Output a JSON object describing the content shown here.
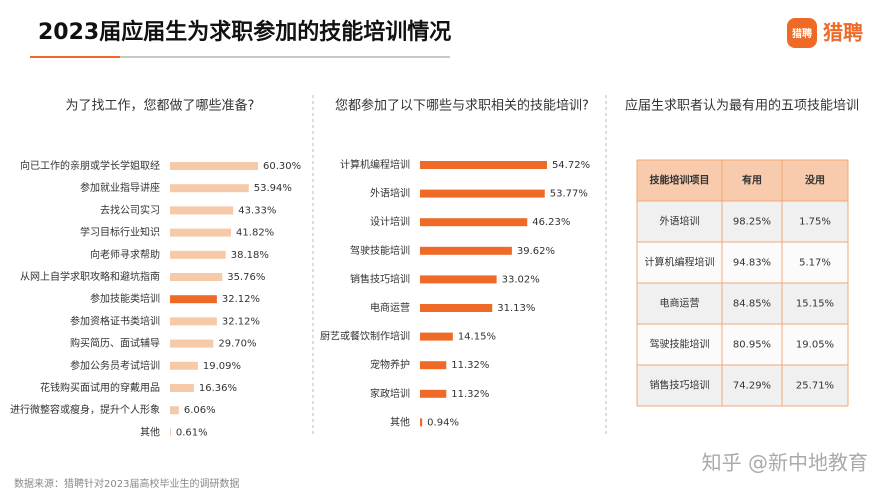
{
  "title": "2023届应届生为求职参加的技能培训情况",
  "logo": {
    "icon_text": "猎聘",
    "text": "猎聘"
  },
  "chart_data": [
    {
      "type": "bar",
      "orientation": "horizontal",
      "title": "为了找工作，您都做了哪些准备?",
      "categories": [
        "向已工作的亲朋或学长学姐取经",
        "参加就业指导讲座",
        "去找公司实习",
        "学习目标行业知识",
        "向老师寻求帮助",
        "从网上自学求职攻略和避坑指南",
        "参加技能类培训",
        "参加资格证书类培训",
        "购买简历、面试辅导",
        "参加公务员考试培训",
        "花钱购买面试用的穿戴用品",
        "进行微整容或瘦身，提升个人形象",
        "其他"
      ],
      "values": [
        60.3,
        53.94,
        43.33,
        41.82,
        38.18,
        35.76,
        32.12,
        32.12,
        29.7,
        19.09,
        16.36,
        6.06,
        0.61
      ],
      "value_labels": [
        "60.30%",
        "53.94%",
        "43.33%",
        "41.82%",
        "38.18%",
        "35.76%",
        "32.12%",
        "32.12%",
        "29.70%",
        "19.09%",
        "16.36%",
        "6.06%",
        "0.61%"
      ],
      "colors": [
        "#f6c9a9",
        "#f6c9a9",
        "#f6c9a9",
        "#f6c9a9",
        "#f6c9a9",
        "#f6c9a9",
        "#ee6a26",
        "#f6c9a9",
        "#f6c9a9",
        "#f6c9a9",
        "#f6c9a9",
        "#f6c9a9",
        "#f6c9a9"
      ]
    },
    {
      "type": "bar",
      "orientation": "horizontal",
      "title": "您都参加了以下哪些与求职相关的技能培训?",
      "categories": [
        "计算机编程培训",
        "外语培训",
        "设计培训",
        "驾驶技能培训",
        "销售技巧培训",
        "电商运营",
        "厨艺或餐饮制作培训",
        "宠物养护",
        "家政培训",
        "其他"
      ],
      "values": [
        54.72,
        53.77,
        46.23,
        39.62,
        33.02,
        31.13,
        14.15,
        11.32,
        11.32,
        0.94
      ],
      "value_labels": [
        "54.72%",
        "53.77%",
        "46.23%",
        "39.62%",
        "33.02%",
        "31.13%",
        "14.15%",
        "11.32%",
        "11.32%",
        "0.94%"
      ],
      "color": "#ee6a26"
    }
  ],
  "table": {
    "title": "应届生求职者认为最有用的五项技能培训",
    "header": [
      "技能培训项目",
      "有用",
      "没用"
    ],
    "rows": [
      [
        "外语培训",
        "98.25%",
        "1.75%"
      ],
      [
        "计算机编程培训",
        "94.83%",
        "5.17%"
      ],
      [
        "电商运营",
        "84.85%",
        "15.15%"
      ],
      [
        "驾驶技能培训",
        "80.95%",
        "19.05%"
      ],
      [
        "销售技巧培训",
        "74.29%",
        "25.71%"
      ]
    ]
  },
  "source": "数据来源：猎聘针对2023届高校毕业生的调研数据",
  "watermark": "知乎 @新中地教育"
}
